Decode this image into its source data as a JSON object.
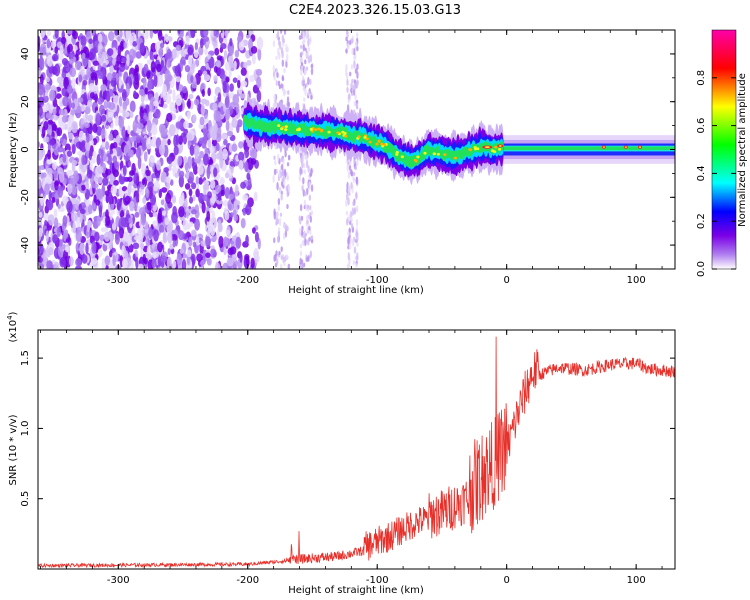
{
  "title": "C2E4.2023.326.15.03.G13",
  "chart_data": [
    {
      "type": "heatmap",
      "xlabel": "Height of straight line (km)",
      "ylabel": "Frequency (Hz)",
      "xlim": [
        -362,
        130
      ],
      "ylim": [
        -50,
        50
      ],
      "xticks": [
        -300,
        -200,
        -100,
        0,
        100
      ],
      "yticks": [
        -40,
        -20,
        0,
        20,
        40
      ],
      "xtick_labels": [
        "-300",
        "-200",
        "-100",
        "0",
        "100"
      ],
      "ytick_labels": [
        "-40",
        "-20",
        "0",
        "20",
        "40"
      ],
      "colorbar": {
        "label": "Normalized spectral amplitude",
        "range": [
          0.0,
          1.0
        ],
        "ticks": [
          0.0,
          0.2,
          0.4,
          0.6,
          0.8
        ],
        "tick_labels": [
          "0.0",
          "0.2",
          "0.4",
          "0.6",
          "0.8"
        ],
        "colormap": [
          "#ffffff",
          "#7a00e6",
          "#0000ff",
          "#00ffff",
          "#00ff00",
          "#ffff00",
          "#ff0000",
          "#ff00aa"
        ]
      },
      "ridge": {
        "x": [
          -202,
          -190,
          -170,
          -150,
          -130,
          -110,
          -95,
          -85,
          -75,
          -68,
          -60,
          -50,
          -40,
          -30,
          -20,
          -10,
          0,
          20,
          60,
          100,
          130
        ],
        "y": [
          12,
          10,
          9,
          8,
          7,
          5,
          2,
          -2,
          -5,
          -4,
          0,
          -2,
          -3,
          -1,
          1,
          0,
          1,
          1,
          1,
          1,
          0
        ]
      }
    },
    {
      "type": "line",
      "xlabel": "Height of straight line (km)",
      "ylabel": "SNR (10 * v/v)",
      "scale_label": "(x10",
      "scale_exp": "4",
      "scale_close": ")",
      "xlim": [
        -362,
        130
      ],
      "ylim": [
        0,
        17000
      ],
      "xticks": [
        -300,
        -200,
        -100,
        0,
        100
      ],
      "yticks": [
        5000,
        10000,
        15000
      ],
      "xtick_labels": [
        "-300",
        "-200",
        "-100",
        "0",
        "100"
      ],
      "ytick_labels": [
        "0.5",
        "1.0",
        "1.5"
      ],
      "color": "#e8302a",
      "trend": {
        "x": [
          -362,
          -200,
          -175,
          -160,
          -130,
          -110,
          -90,
          -70,
          -50,
          -30,
          -20,
          -10,
          0,
          10,
          20,
          40,
          60,
          80,
          100,
          110,
          130
        ],
        "y": [
          200,
          300,
          500,
          600,
          800,
          1200,
          2000,
          3000,
          3500,
          4500,
          5500,
          6500,
          8000,
          11000,
          13500,
          14200,
          14000,
          14400,
          14500,
          14100,
          13900
        ]
      }
    }
  ]
}
